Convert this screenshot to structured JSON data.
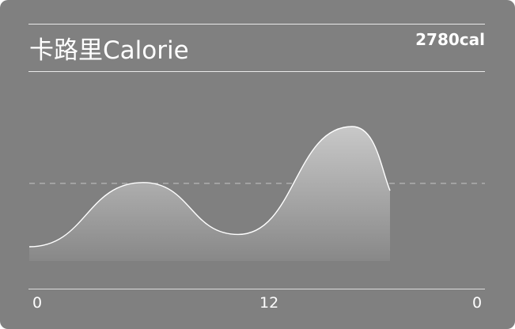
{
  "card": {
    "title": "卡路里Calorie",
    "total": "2780cal"
  },
  "colors": {
    "background": "#808080",
    "line": "#ffffff",
    "fill_top": "#c8c8c8",
    "fill_bottom": "#888888",
    "reference": "#c4c4c4"
  },
  "chart_data": {
    "type": "area",
    "x_tick_labels": [
      "0",
      "12",
      "0"
    ],
    "x": [
      0,
      6,
      11,
      17
    ],
    "values": [
      0.0,
      0.47,
      0.09,
      0.88
    ],
    "ylim": [
      0,
      1
    ],
    "reference_line": 0.47,
    "grid": false,
    "title": "",
    "xlabel": "",
    "ylabel": ""
  }
}
